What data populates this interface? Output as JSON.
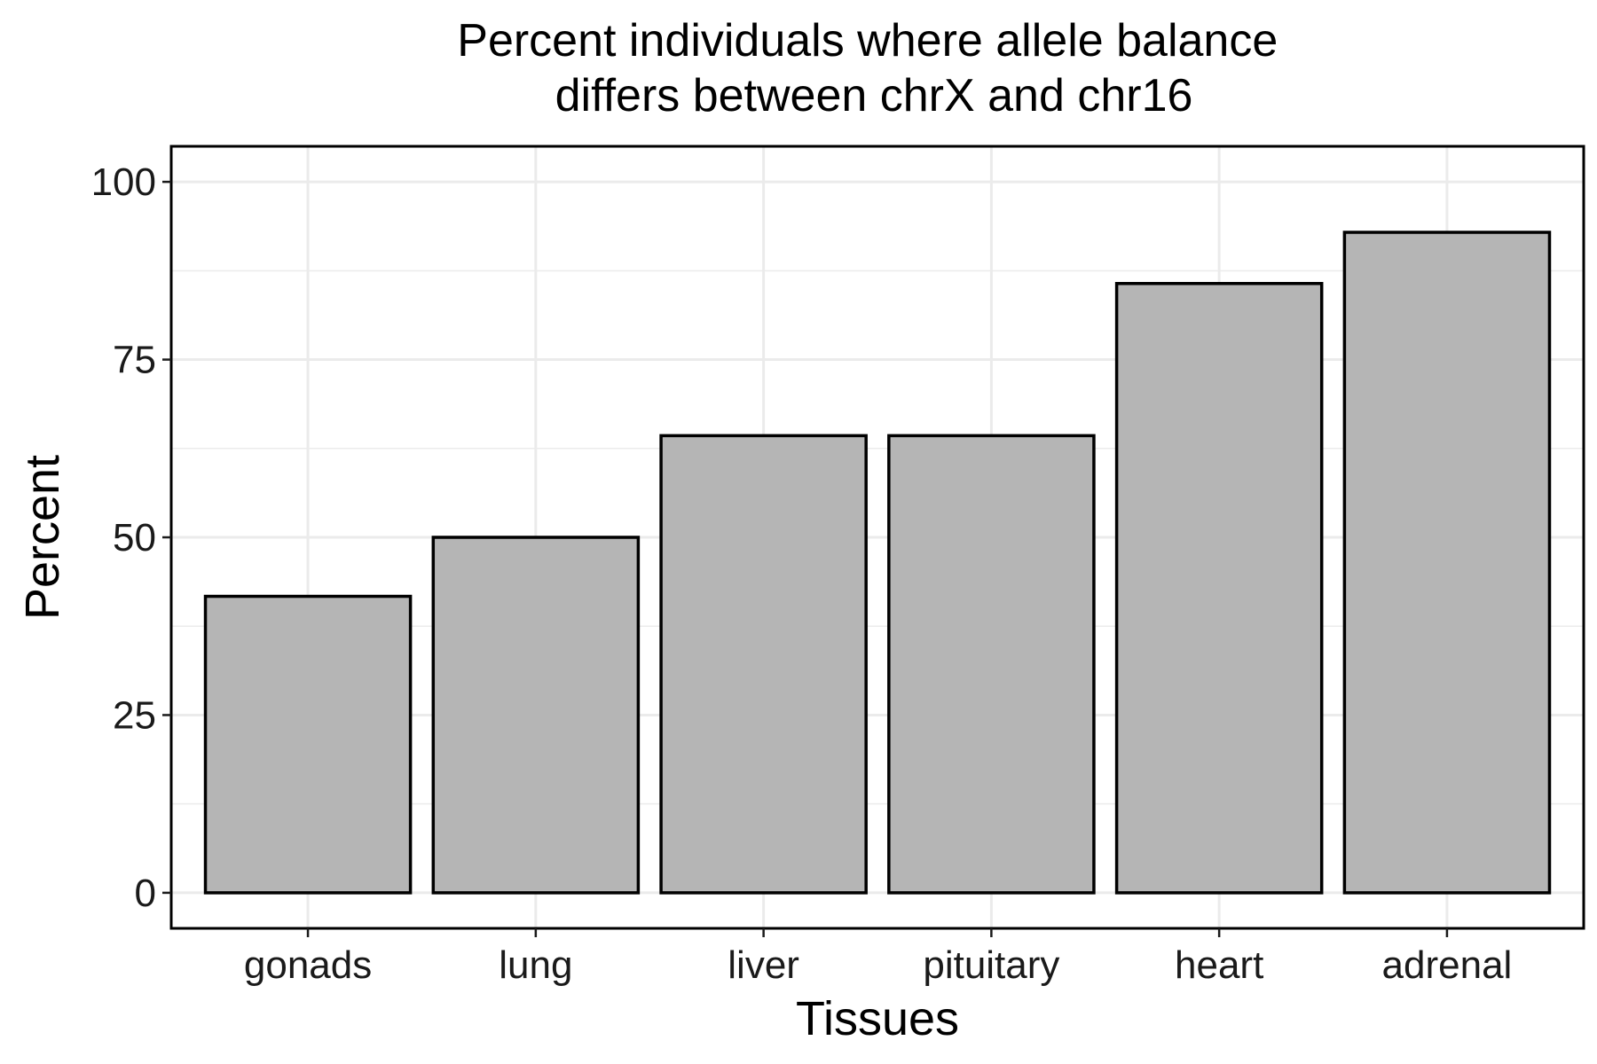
{
  "chart_data": {
    "type": "bar",
    "title": "Percent individuals where allele balance\ndiffers between chrX and chr16",
    "xlabel": "Tissues",
    "ylabel": "Percent",
    "categories": [
      "gonads",
      "lung",
      "liver",
      "pituitary",
      "heart",
      "adrenal"
    ],
    "values": [
      41.7,
      50.0,
      64.3,
      64.3,
      85.7,
      92.9
    ],
    "ylim": [
      -5,
      105
    ],
    "yticks": [
      0,
      25,
      50,
      75,
      100
    ],
    "grid": true,
    "bar_fill": "#b5b5b5",
    "bar_outline": "#000000",
    "legend": "none"
  }
}
